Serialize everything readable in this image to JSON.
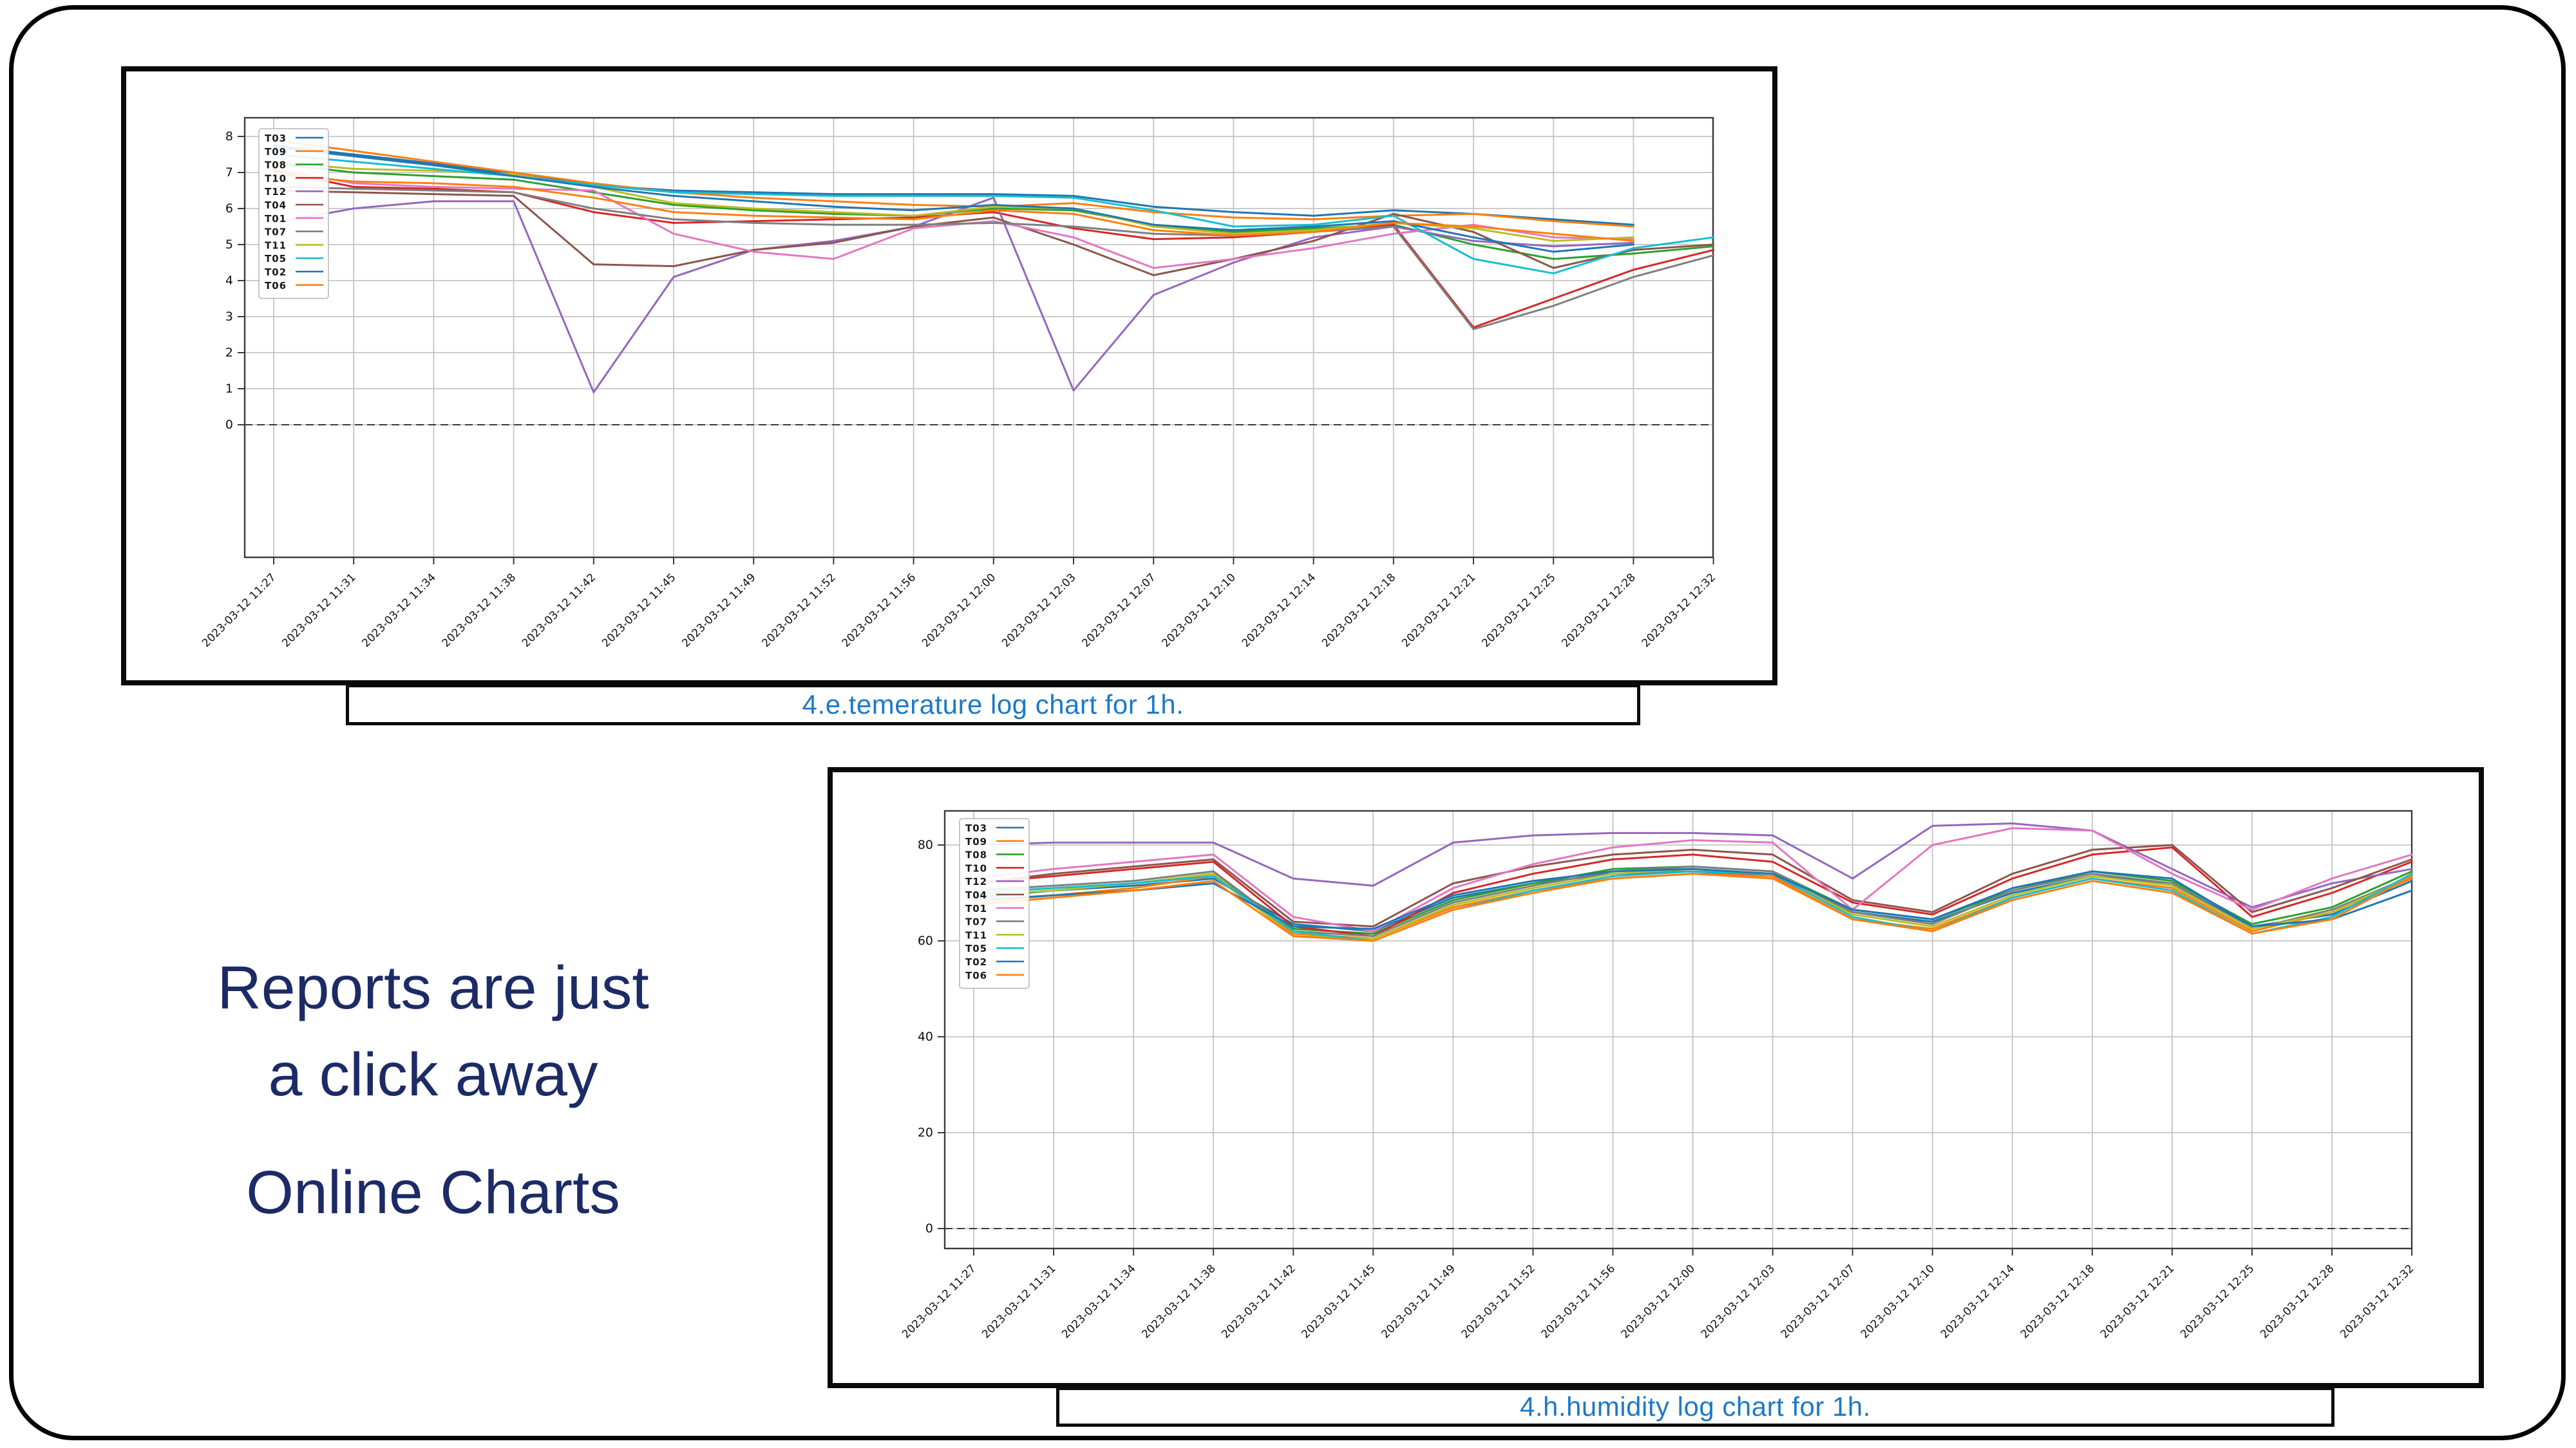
{
  "headline": {
    "line1": "Reports are just",
    "line2": "a click away",
    "line3": "Online Charts",
    "color": "#1c2b66"
  },
  "caption_color": "#1d79c7",
  "chart_data": [
    {
      "type": "line",
      "caption": "4.e.temerature log chart for 1h.",
      "title": "",
      "xlabel": "",
      "ylabel": "",
      "grid": true,
      "legend_position": "upper-left",
      "zero_line_dashed": true,
      "ylim": [
        -3.7,
        8.5
      ],
      "y_ticks": [
        0,
        1,
        2,
        3,
        4,
        5,
        6,
        7,
        8
      ],
      "categories": [
        "2023-03-12 11:27",
        "2023-03-12 11:31",
        "2023-03-12 11:34",
        "2023-03-12 11:38",
        "2023-03-12 11:42",
        "2023-03-12 11:45",
        "2023-03-12 11:49",
        "2023-03-12 11:52",
        "2023-03-12 11:56",
        "2023-03-12 12:00",
        "2023-03-12 12:03",
        "2023-03-12 12:07",
        "2023-03-12 12:10",
        "2023-03-12 12:14",
        "2023-03-12 12:18",
        "2023-03-12 12:21",
        "2023-03-12 12:25",
        "2023-03-12 12:28",
        "2023-03-12 12:32"
      ],
      "series": [
        {
          "name": "T03",
          "color": "#1f77b4",
          "values": [
            7.75,
            7.5,
            7.25,
            6.95,
            6.65,
            6.5,
            6.45,
            6.4,
            6.4,
            6.4,
            6.35,
            6.05,
            5.9,
            5.8,
            5.95,
            5.85,
            5.7,
            5.55,
            null
          ]
        },
        {
          "name": "T09",
          "color": "#ff7f0e",
          "values": [
            7.9,
            7.6,
            7.3,
            7.0,
            6.7,
            6.45,
            6.3,
            6.2,
            6.1,
            6.05,
            6.15,
            5.9,
            5.75,
            5.7,
            5.8,
            5.85,
            5.65,
            5.5,
            null
          ]
        },
        {
          "name": "T08",
          "color": "#2ca02c",
          "values": [
            7.25,
            7.0,
            6.9,
            6.8,
            6.45,
            6.1,
            5.95,
            5.85,
            5.8,
            6.0,
            5.95,
            5.55,
            5.35,
            5.45,
            5.55,
            5.0,
            4.6,
            4.75,
            4.95
          ]
        },
        {
          "name": "T10",
          "color": "#d62728",
          "values": [
            7.05,
            6.6,
            6.55,
            6.45,
            5.9,
            5.6,
            5.65,
            5.7,
            5.75,
            5.9,
            5.45,
            5.15,
            5.2,
            5.35,
            5.55,
            2.7,
            3.5,
            4.3,
            4.85
          ]
        },
        {
          "name": "T12",
          "color": "#9467bd",
          "values": [
            5.6,
            6.0,
            6.2,
            6.2,
            0.9,
            4.1,
            4.85,
            5.1,
            5.5,
            6.3,
            0.95,
            3.6,
            4.5,
            5.2,
            5.5,
            5.1,
            4.95,
            5.05,
            null
          ]
        },
        {
          "name": "T04",
          "color": "#8c564b",
          "values": [
            6.5,
            6.45,
            6.4,
            6.35,
            4.45,
            4.4,
            4.85,
            5.05,
            5.5,
            5.75,
            5.0,
            4.15,
            4.6,
            5.1,
            5.85,
            5.35,
            4.35,
            4.85,
            5.0
          ]
        },
        {
          "name": "T01",
          "color": "#e377c2",
          "values": [
            7.1,
            6.7,
            6.6,
            6.55,
            6.5,
            5.3,
            4.8,
            4.6,
            5.45,
            5.65,
            5.2,
            4.35,
            4.6,
            4.9,
            5.3,
            5.55,
            5.2,
            5.15,
            null
          ]
        },
        {
          "name": "T07",
          "color": "#7f7f7f",
          "values": [
            6.6,
            6.55,
            6.5,
            6.45,
            6.0,
            5.7,
            5.6,
            5.55,
            5.55,
            5.6,
            5.5,
            5.3,
            5.25,
            5.35,
            5.5,
            2.65,
            3.3,
            4.1,
            4.7
          ]
        },
        {
          "name": "T11",
          "color": "#bcbd22",
          "values": [
            7.3,
            7.1,
            7.05,
            6.95,
            6.6,
            6.15,
            6.0,
            5.9,
            5.8,
            6.05,
            6.0,
            5.5,
            5.3,
            5.4,
            5.6,
            5.45,
            5.1,
            5.2,
            null
          ]
        },
        {
          "name": "T05",
          "color": "#17becf",
          "values": [
            7.5,
            7.3,
            7.1,
            6.9,
            6.65,
            6.45,
            6.4,
            6.35,
            6.35,
            6.35,
            6.3,
            5.95,
            5.5,
            5.55,
            5.8,
            4.6,
            4.2,
            4.9,
            5.2
          ]
        },
        {
          "name": "T02",
          "color": "#1f77b4",
          "values": [
            7.7,
            7.45,
            7.2,
            6.9,
            6.6,
            6.35,
            6.2,
            6.05,
            5.95,
            6.1,
            6.0,
            5.55,
            5.4,
            5.5,
            5.65,
            5.2,
            4.8,
            5.0,
            null
          ]
        },
        {
          "name": "T06",
          "color": "#ff7f0e",
          "values": [
            6.95,
            6.75,
            6.7,
            6.6,
            6.3,
            5.9,
            5.8,
            5.75,
            5.7,
            5.95,
            5.85,
            5.4,
            5.25,
            5.35,
            5.6,
            5.5,
            5.3,
            5.1,
            null
          ]
        }
      ]
    },
    {
      "type": "line",
      "caption": "4.h.humidity log chart for 1h.",
      "title": "",
      "xlabel": "",
      "ylabel": "",
      "grid": true,
      "legend_position": "upper-left",
      "zero_line_dashed": true,
      "ylim": [
        -4.2,
        87
      ],
      "y_ticks": [
        0,
        20,
        40,
        60,
        80
      ],
      "categories": [
        "2023-03-12 11:27",
        "2023-03-12 11:31",
        "2023-03-12 11:34",
        "2023-03-12 11:38",
        "2023-03-12 11:42",
        "2023-03-12 11:45",
        "2023-03-12 11:49",
        "2023-03-12 11:52",
        "2023-03-12 11:56",
        "2023-03-12 12:00",
        "2023-03-12 12:03",
        "2023-03-12 12:07",
        "2023-03-12 12:10",
        "2023-03-12 12:14",
        "2023-03-12 12:18",
        "2023-03-12 12:21",
        "2023-03-12 12:25",
        "2023-03-12 12:28",
        "2023-03-12 12:32"
      ],
      "series": [
        {
          "name": "T03",
          "color": "#1f77b4",
          "values": [
            69,
            70.5,
            71.5,
            73,
            63.5,
            62,
            69,
            72,
            74,
            74.5,
            73.5,
            66,
            64,
            70,
            73.5,
            72,
            63,
            65.5,
            72.5
          ]
        },
        {
          "name": "T09",
          "color": "#ff7f0e",
          "values": [
            68,
            69.5,
            71,
            73.5,
            61.5,
            60.5,
            67,
            70.5,
            73,
            74,
            73,
            64.5,
            62.5,
            69,
            73,
            71,
            62,
            66,
            73
          ]
        },
        {
          "name": "T08",
          "color": "#2ca02c",
          "values": [
            70,
            71,
            72,
            74,
            62.5,
            61.5,
            68.5,
            72,
            75,
            75.5,
            74.5,
            66.5,
            64.5,
            70.5,
            74.5,
            72.5,
            63.5,
            67,
            74.5
          ]
        },
        {
          "name": "T10",
          "color": "#d62728",
          "values": [
            72,
            73.5,
            75,
            76.5,
            63,
            61,
            70,
            74,
            77,
            78,
            76.5,
            68,
            65.5,
            73,
            78,
            79.5,
            65,
            70,
            76.5
          ]
        },
        {
          "name": "T12",
          "color": "#9467bd",
          "values": [
            80,
            80.5,
            80.5,
            80.5,
            73,
            71.5,
            80.5,
            82,
            82.5,
            82.5,
            82,
            73,
            84,
            84.5,
            83,
            75,
            67,
            72,
            75
          ]
        },
        {
          "name": "T04",
          "color": "#8c564b",
          "values": [
            72,
            74,
            75.5,
            77,
            64,
            63,
            72,
            75.5,
            78,
            79,
            78,
            68.5,
            66,
            74,
            79,
            80,
            66,
            71,
            77
          ]
        },
        {
          "name": "T01",
          "color": "#e377c2",
          "values": [
            73,
            75,
            76.5,
            78,
            65,
            62,
            71,
            76,
            79.5,
            81,
            80.5,
            66.5,
            80,
            83.5,
            83,
            74,
            66.5,
            73,
            78
          ]
        },
        {
          "name": "T07",
          "color": "#7f7f7f",
          "values": [
            70.5,
            71.5,
            72.5,
            74.5,
            62,
            61,
            68,
            71.5,
            74.5,
            75.5,
            74.5,
            66,
            63.5,
            70.5,
            74,
            72,
            62.5,
            66.5,
            73.5
          ]
        },
        {
          "name": "T11",
          "color": "#bcbd22",
          "values": [
            69.5,
            70.5,
            72,
            74,
            61,
            60.5,
            67.5,
            71,
            74,
            75,
            74,
            65.5,
            63,
            69.5,
            73.5,
            71.5,
            62.5,
            66,
            73.5
          ]
        },
        {
          "name": "T05",
          "color": "#17becf",
          "values": [
            70,
            71,
            72,
            73.5,
            62,
            60,
            66.5,
            70.5,
            73.5,
            74.5,
            74,
            65,
            62,
            69,
            73,
            70.5,
            61.5,
            65,
            74
          ]
        },
        {
          "name": "T02",
          "color": "#1f77b4",
          "values": [
            68.5,
            69.5,
            70.5,
            72,
            63,
            62.5,
            69.5,
            72.5,
            74.5,
            75,
            74,
            66.5,
            64.5,
            71,
            74.5,
            73,
            63,
            64.5,
            70.5
          ]
        },
        {
          "name": "T06",
          "color": "#ff7f0e",
          "values": [
            67.5,
            69,
            70.5,
            72.5,
            61,
            60,
            66.5,
            70,
            73,
            74,
            73.5,
            64.5,
            62,
            68.5,
            72.5,
            70,
            61.5,
            64.5,
            73.5
          ]
        }
      ]
    }
  ]
}
